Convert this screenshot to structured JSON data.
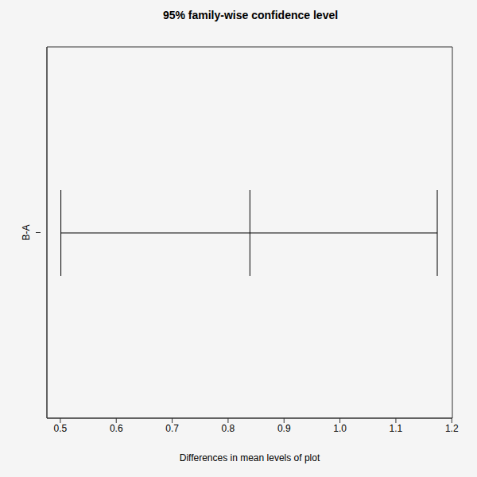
{
  "chart_data": {
    "type": "interval",
    "title": "95% family-wise confidence level",
    "xlabel": "Differences in mean levels of plot",
    "categories": [
      "B-A"
    ],
    "values": [
      0.839
    ],
    "lower": [
      0.501
    ],
    "upper": [
      1.174
    ],
    "xlim": [
      0.476,
      1.201
    ],
    "xticks": [
      0.5,
      0.6,
      0.7,
      0.8,
      0.9,
      {
        "value": 1,
        "label": "1.0"
      },
      1.1,
      1.2
    ],
    "orientation": "horizontal",
    "color": "#000000"
  }
}
